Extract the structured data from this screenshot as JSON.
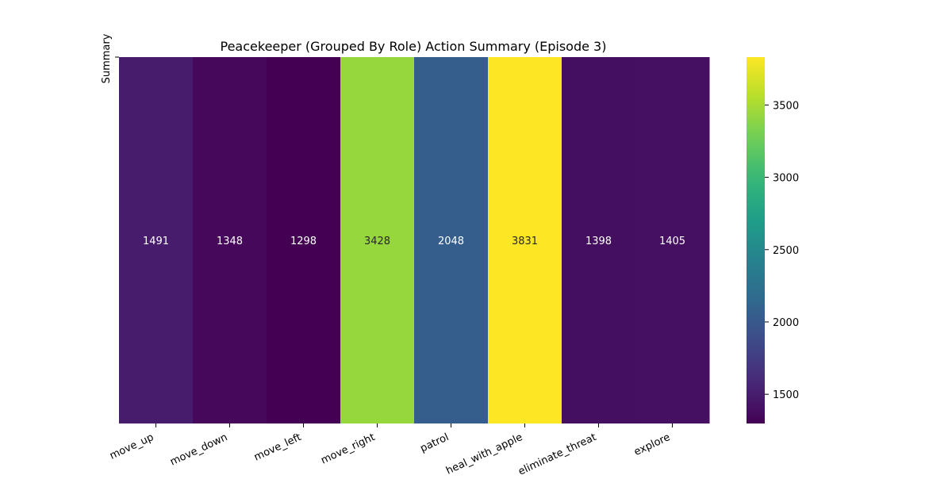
{
  "chart_data": {
    "type": "heatmap",
    "title": "Peacekeeper (Grouped By Role) Action Summary (Episode 3)",
    "ylabel": "Summary",
    "xlabel": "",
    "categories": [
      "move_up",
      "move_down",
      "move_left",
      "move_right",
      "patrol",
      "heal_with_apple",
      "eliminate_threat",
      "explore"
    ],
    "values": [
      1491,
      1348,
      1298,
      3428,
      2048,
      3831,
      1398,
      1405
    ],
    "colormap": "viridis",
    "color_range": [
      1298,
      3831
    ],
    "colorbar_ticks": [
      1500,
      2000,
      2500,
      3000,
      3500
    ],
    "annotations": true,
    "xtick_rotation": "30 degrees"
  }
}
